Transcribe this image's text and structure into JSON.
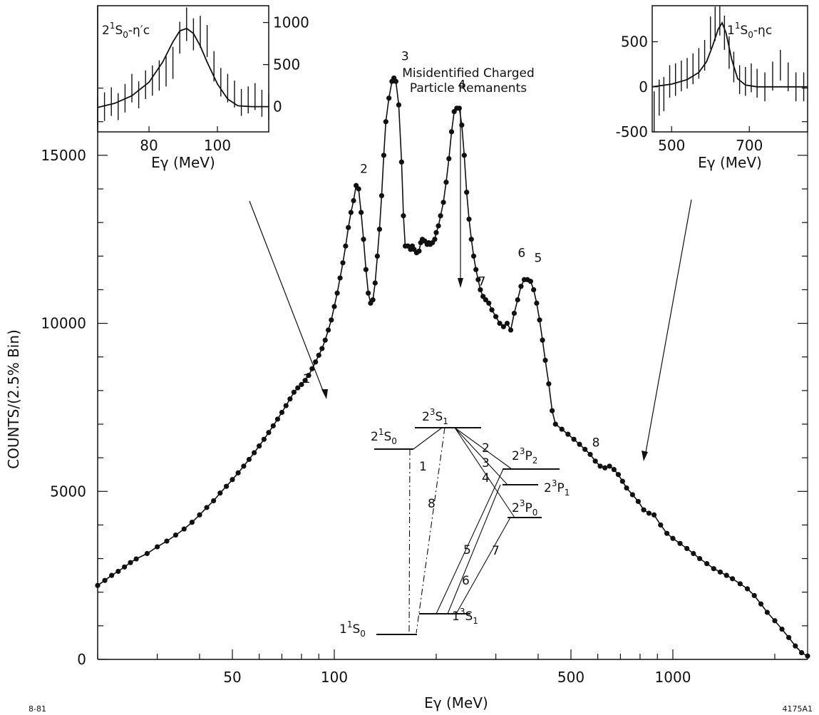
{
  "chart_data": [
    {
      "type": "scatter",
      "title": "",
      "xlabel": "Eγ (MeV)",
      "ylabel": "COUNTS/(2.5% Bin)",
      "xscale": "log",
      "xlim": [
        20,
        2500
      ],
      "ylim": [
        0,
        17500
      ],
      "xticks": [
        50,
        100,
        500,
        1000
      ],
      "yticks": [
        0,
        5000,
        10000,
        15000
      ],
      "grid": false,
      "markers": "filled-circles-connected-by-line",
      "peak_labels": [
        "1",
        "2",
        "3",
        "4",
        "5",
        "6",
        "7",
        "8"
      ],
      "annotation": [
        "Misidentified Charged",
        "Particle Remanents"
      ],
      "series": [
        {
          "x": [
            20,
            21,
            22,
            23,
            24,
            25,
            26,
            28,
            30,
            32,
            34,
            36,
            38,
            40,
            42,
            44,
            46,
            48,
            50,
            52,
            54,
            56,
            58,
            60,
            62,
            64,
            66,
            68,
            70,
            72,
            74,
            76,
            78,
            80,
            82,
            84,
            86,
            88,
            90,
            92,
            94,
            96,
            98,
            100,
            102,
            104,
            106,
            108,
            110,
            112,
            114,
            116,
            118,
            120,
            122,
            124,
            126,
            128,
            130,
            132,
            134,
            136,
            138,
            140,
            142,
            145,
            148,
            150,
            152,
            155,
            158,
            160,
            162,
            165,
            168,
            170,
            172,
            175,
            178,
            180,
            182,
            185,
            188,
            190,
            192,
            195,
            198,
            200,
            203,
            206,
            210,
            214,
            218,
            222,
            226,
            230,
            234,
            238,
            242,
            246,
            250,
            254,
            258,
            262,
            266,
            270,
            275,
            280,
            286,
            292,
            300,
            308,
            316,
            324,
            332,
            340,
            348,
            356,
            364,
            372,
            380,
            388,
            396,
            404,
            412,
            420,
            430,
            440,
            450,
            470,
            490,
            510,
            530,
            550,
            570,
            590,
            610,
            630,
            650,
            670,
            690,
            710,
            730,
            760,
            790,
            820,
            850,
            880,
            920,
            960,
            1000,
            1050,
            1100,
            1150,
            1200,
            1260,
            1320,
            1380,
            1440,
            1500,
            1580,
            1660,
            1740,
            1820,
            1900,
            2000,
            2100,
            2200,
            2300,
            2400,
            2500
          ],
          "y": [
            2200,
            2350,
            2500,
            2620,
            2750,
            2880,
            2990,
            3150,
            3350,
            3520,
            3700,
            3880,
            4080,
            4300,
            4520,
            4720,
            4950,
            5150,
            5350,
            5550,
            5750,
            5950,
            6150,
            6350,
            6550,
            6750,
            6950,
            7150,
            7350,
            7550,
            7750,
            7950,
            8080,
            8180,
            8300,
            8450,
            8650,
            8850,
            9050,
            9250,
            9500,
            9800,
            10100,
            10500,
            10900,
            11350,
            11800,
            12300,
            12850,
            13300,
            13650,
            14100,
            14000,
            13300,
            12500,
            11600,
            10900,
            10600,
            10700,
            11200,
            12000,
            12800,
            13800,
            15000,
            16000,
            16700,
            17200,
            17300,
            17200,
            16500,
            14800,
            13200,
            12300,
            12300,
            12200,
            12300,
            12200,
            12100,
            12150,
            12400,
            12500,
            12450,
            12350,
            12400,
            12350,
            12400,
            12500,
            12700,
            12900,
            13200,
            13600,
            14200,
            14900,
            15700,
            16300,
            16400,
            16400,
            15900,
            15000,
            13900,
            13100,
            12500,
            12000,
            11600,
            11300,
            11000,
            10800,
            10700,
            10600,
            10400,
            10200,
            10000,
            9900,
            10000,
            9800,
            10300,
            10700,
            11100,
            11300,
            11300,
            11250,
            11000,
            10600,
            10100,
            9500,
            8900,
            8200,
            7400,
            7000,
            6850,
            6700,
            6550,
            6400,
            6250,
            6100,
            5900,
            5750,
            5700,
            5750,
            5650,
            5500,
            5300,
            5100,
            4900,
            4700,
            4450,
            4350,
            4300,
            4000,
            3750,
            3600,
            3450,
            3300,
            3150,
            3000,
            2850,
            2700,
            2600,
            2500,
            2400,
            2250,
            2100,
            1900,
            1650,
            1400,
            1150,
            900,
            650,
            400,
            200,
            100
          ]
        }
      ]
    },
    {
      "type": "line",
      "title": "2¹S₀-η′c",
      "xlabel": "Eγ (MeV)",
      "ylabel": "",
      "xlim": [
        65,
        115
      ],
      "ylim": [
        -300,
        1200
      ],
      "xticks": [
        80,
        100
      ],
      "yticks": [
        0,
        500,
        1000
      ],
      "ytick_side": "right",
      "series": [
        {
          "name": "fit",
          "x": [
            65,
            70,
            75,
            80,
            84,
            87,
            89,
            91,
            93,
            95,
            97,
            100,
            103,
            106,
            110,
            115
          ],
          "y": [
            -10,
            40,
            130,
            290,
            530,
            770,
            900,
            930,
            870,
            720,
            530,
            270,
            90,
            10,
            0,
            0
          ]
        },
        {
          "name": "data",
          "x": [
            65,
            67,
            69,
            71,
            73,
            75,
            77,
            79,
            81,
            83,
            85,
            87,
            89,
            91,
            93,
            95,
            97,
            99,
            101,
            103,
            105,
            107,
            109,
            111,
            113,
            115
          ],
          "y": [
            -60,
            0,
            60,
            0,
            100,
            220,
            140,
            260,
            310,
            370,
            420,
            520,
            820,
            980,
            860,
            890,
            780,
            480,
            290,
            220,
            150,
            50,
            80,
            120,
            40,
            0
          ],
          "err": [
            180,
            170,
            170,
            160,
            170,
            170,
            160,
            170,
            180,
            180,
            180,
            190,
            190,
            200,
            190,
            190,
            190,
            180,
            170,
            170,
            160,
            160,
            160,
            160,
            160,
            160
          ]
        }
      ]
    },
    {
      "type": "line",
      "title": "1¹S₀-ηc",
      "xlabel": "Eγ (MeV)",
      "ylabel": "",
      "xlim": [
        450,
        850
      ],
      "ylim": [
        -500,
        900
      ],
      "xticks": [
        500,
        700
      ],
      "yticks": [
        -500,
        0,
        500
      ],
      "ytick_side": "left",
      "series": [
        {
          "name": "fit",
          "x": [
            450,
            500,
            540,
            570,
            590,
            605,
            620,
            630,
            640,
            655,
            670,
            690,
            720,
            760,
            800,
            850
          ],
          "y": [
            0,
            30,
            80,
            160,
            280,
            450,
            640,
            710,
            600,
            300,
            90,
            20,
            0,
            0,
            0,
            0
          ]
        },
        {
          "name": "data",
          "x": [
            455,
            468,
            480,
            495,
            510,
            525,
            540,
            555,
            570,
            585,
            600,
            612,
            624,
            636,
            648,
            660,
            675,
            690,
            705,
            720,
            740,
            760,
            780,
            800,
            820,
            840
          ],
          "y": [
            -300,
            -120,
            -80,
            60,
            80,
            120,
            150,
            200,
            260,
            350,
            600,
            700,
            760,
            600,
            380,
            220,
            80,
            60,
            100,
            40,
            0,
            120,
            240,
            110,
            0,
            0
          ],
          "err": [
            250,
            200,
            190,
            180,
            180,
            170,
            170,
            170,
            170,
            170,
            180,
            190,
            190,
            190,
            180,
            170,
            160,
            160,
            160,
            160,
            160,
            160,
            170,
            160,
            160,
            160
          ]
        }
      ]
    }
  ],
  "level_diagram": {
    "levels": [
      "2³S₁",
      "2¹S₀",
      "2³P₂",
      "2³P₁",
      "2³P₀",
      "1¹S₀",
      "1³S₁"
    ],
    "transition_labels": [
      "1",
      "2",
      "3",
      "4",
      "5",
      "6",
      "7",
      "8"
    ]
  },
  "corner_left": "8-81",
  "corner_right": "4175A1"
}
